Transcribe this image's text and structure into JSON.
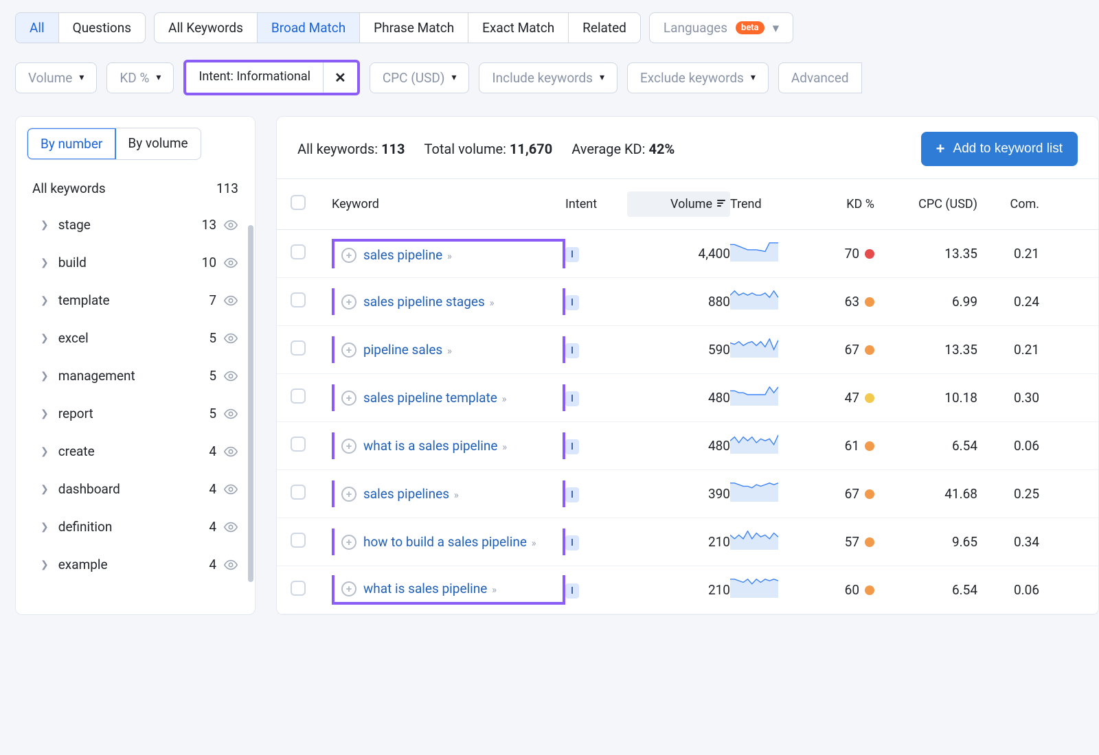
{
  "tabs_primary": [
    {
      "label": "All",
      "active": true
    },
    {
      "label": "Questions",
      "active": false
    }
  ],
  "tabs_match": [
    {
      "label": "All Keywords",
      "active": false
    },
    {
      "label": "Broad Match",
      "active": true
    },
    {
      "label": "Phrase Match",
      "active": false
    },
    {
      "label": "Exact Match",
      "active": false
    },
    {
      "label": "Related",
      "active": false
    }
  ],
  "lang_label": "Languages",
  "beta": "beta",
  "filters": {
    "volume": "Volume",
    "kd": "KD %",
    "intent": "Intent: Informational",
    "cpc": "CPC (USD)",
    "include": "Include keywords",
    "exclude": "Exclude keywords",
    "advanced": "Advanced"
  },
  "sidebar": {
    "seg_number": "By number",
    "seg_volume": "By volume",
    "all_kw": "All keywords",
    "all_kw_count": "113",
    "items": [
      {
        "name": "stage",
        "count": "13"
      },
      {
        "name": "build",
        "count": "10"
      },
      {
        "name": "template",
        "count": "7"
      },
      {
        "name": "excel",
        "count": "5"
      },
      {
        "name": "management",
        "count": "5"
      },
      {
        "name": "report",
        "count": "5"
      },
      {
        "name": "create",
        "count": "4"
      },
      {
        "name": "dashboard",
        "count": "4"
      },
      {
        "name": "definition",
        "count": "4"
      },
      {
        "name": "example",
        "count": "4"
      }
    ]
  },
  "stats": {
    "all_kw_label": "All keywords:",
    "all_kw_val": "113",
    "total_vol_label": "Total volume:",
    "total_vol_val": "11,670",
    "avg_kd_label": "Average KD:",
    "avg_kd_val": "42%"
  },
  "add_btn": "Add to keyword list",
  "table": {
    "headers": {
      "keyword": "Keyword",
      "intent": "Intent",
      "volume": "Volume",
      "trend": "Trend",
      "kd": "KD %",
      "cpc": "CPC (USD)",
      "com": "Com."
    },
    "rows": [
      {
        "keyword": "sales pipeline",
        "intent": "I",
        "volume": "4,400",
        "kd": "70",
        "kd_color": "#e64c4c",
        "cpc": "13.35",
        "com": "0.21",
        "trend": [
          18,
          18,
          16,
          14,
          12,
          12,
          12,
          11,
          10,
          20,
          20,
          20
        ]
      },
      {
        "keyword": "sales pipeline stages",
        "intent": "I",
        "volume": "880",
        "kd": "63",
        "kd_color": "#f2994a",
        "cpc": "6.99",
        "com": "0.24",
        "trend": [
          6,
          8,
          6,
          7,
          6,
          7,
          6,
          6,
          7,
          5,
          8,
          5
        ]
      },
      {
        "keyword": "pipeline sales",
        "intent": "I",
        "volume": "590",
        "kd": "67",
        "kd_color": "#f2994a",
        "cpc": "13.35",
        "com": "0.21",
        "trend": [
          20,
          18,
          22,
          16,
          20,
          22,
          16,
          22,
          14,
          26,
          10,
          24
        ]
      },
      {
        "keyword": "sales pipeline template",
        "intent": "I",
        "volume": "480",
        "kd": "47",
        "kd_color": "#f2c94c",
        "cpc": "10.18",
        "com": "0.30",
        "trend": [
          14,
          14,
          12,
          12,
          10,
          10,
          10,
          10,
          10,
          18,
          12,
          18
        ]
      },
      {
        "keyword": "what is a sales pipeline",
        "intent": "I",
        "volume": "480",
        "kd": "61",
        "kd_color": "#f2994a",
        "cpc": "6.54",
        "com": "0.06",
        "trend": [
          12,
          16,
          10,
          16,
          12,
          16,
          10,
          14,
          12,
          14,
          8,
          18
        ]
      },
      {
        "keyword": "sales pipelines",
        "intent": "I",
        "volume": "390",
        "kd": "67",
        "kd_color": "#f2994a",
        "cpc": "41.68",
        "com": "0.25",
        "trend": [
          22,
          22,
          20,
          18,
          18,
          16,
          20,
          18,
          20,
          22,
          20,
          22
        ]
      },
      {
        "keyword": "how to build a sales pipeline",
        "intent": "I",
        "volume": "210",
        "kd": "57",
        "kd_color": "#f2994a",
        "cpc": "9.65",
        "com": "0.34",
        "trend": [
          14,
          10,
          14,
          10,
          18,
          10,
          16,
          12,
          14,
          10,
          16,
          12
        ]
      },
      {
        "keyword": "what is sales pipeline",
        "intent": "I",
        "volume": "210",
        "kd": "60",
        "kd_color": "#f2994a",
        "cpc": "6.54",
        "com": "0.06",
        "trend": [
          22,
          22,
          20,
          18,
          22,
          16,
          22,
          18,
          22,
          20,
          22,
          20
        ]
      }
    ]
  },
  "colors": {
    "trend_fill": "#dce9fb",
    "trend_stroke": "#3b82f6",
    "highlight": "#8b5cf6"
  }
}
